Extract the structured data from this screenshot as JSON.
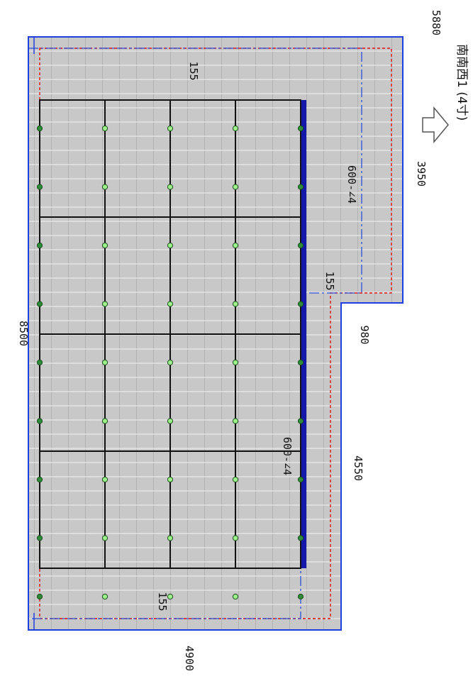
{
  "dimensions": {
    "top_right": "5880",
    "right_upper": "3950",
    "right_step": "980",
    "right_lower": "4550",
    "left_total": "8500",
    "bottom": "4900",
    "offset_top": "155",
    "offset_step": "155",
    "offset_bottom": "155"
  },
  "slopes": {
    "upper": "600-∠4",
    "lower": "600-∠4"
  },
  "orientation": {
    "label": "南南西1 (4寸)"
  },
  "panel_grid": {
    "rows": 4,
    "cols": 4
  },
  "colors": {
    "roof_fill": "#c9c9c9",
    "roof_outline": "#1f3fe0",
    "setback_line": "#e01010",
    "ridge_line": "#2b4fd8",
    "eave_bar": "#1418a8",
    "panel_border": "#111111",
    "mount_point": "#9cf08a"
  }
}
